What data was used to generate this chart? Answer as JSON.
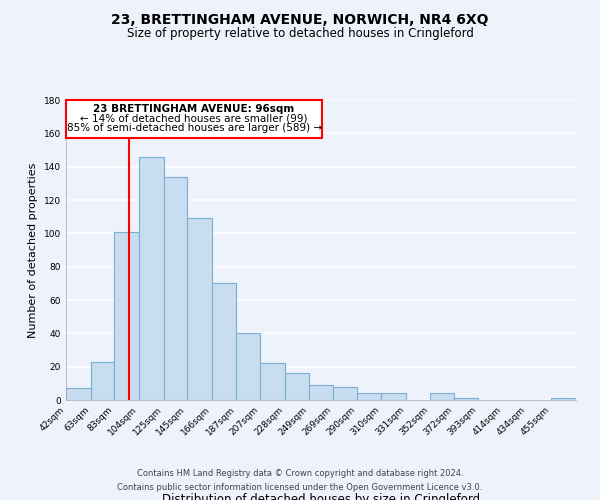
{
  "title": "23, BRETTINGHAM AVENUE, NORWICH, NR4 6XQ",
  "subtitle": "Size of property relative to detached houses in Cringleford",
  "xlabel": "Distribution of detached houses by size in Cringleford",
  "ylabel": "Number of detached properties",
  "bar_color": "#c8ddf0",
  "bar_edge_color": "#7aafd4",
  "categories": [
    "42sqm",
    "63sqm",
    "83sqm",
    "104sqm",
    "125sqm",
    "145sqm",
    "166sqm",
    "187sqm",
    "207sqm",
    "228sqm",
    "249sqm",
    "269sqm",
    "290sqm",
    "310sqm",
    "331sqm",
    "352sqm",
    "372sqm",
    "393sqm",
    "414sqm",
    "434sqm",
    "455sqm"
  ],
  "values": [
    7,
    23,
    101,
    146,
    134,
    109,
    70,
    40,
    22,
    16,
    9,
    8,
    4,
    4,
    0,
    4,
    1,
    0,
    0,
    0,
    1
  ],
  "ylim": [
    0,
    180
  ],
  "yticks": [
    0,
    20,
    40,
    60,
    80,
    100,
    120,
    140,
    160,
    180
  ],
  "property_line_x": 96,
  "bin_edges": [
    42,
    63,
    83,
    104,
    125,
    145,
    166,
    187,
    207,
    228,
    249,
    269,
    290,
    310,
    331,
    352,
    372,
    393,
    414,
    434,
    455,
    476
  ],
  "annotation_title": "23 BRETTINGHAM AVENUE: 96sqm",
  "annotation_line1": "← 14% of detached houses are smaller (99)",
  "annotation_line2": "85% of semi-detached houses are larger (589) →",
  "footer_line1": "Contains HM Land Registry data © Crown copyright and database right 2024.",
  "footer_line2": "Contains public sector information licensed under the Open Government Licence v3.0.",
  "background_color": "#eef2fa",
  "grid_color": "#ffffff"
}
